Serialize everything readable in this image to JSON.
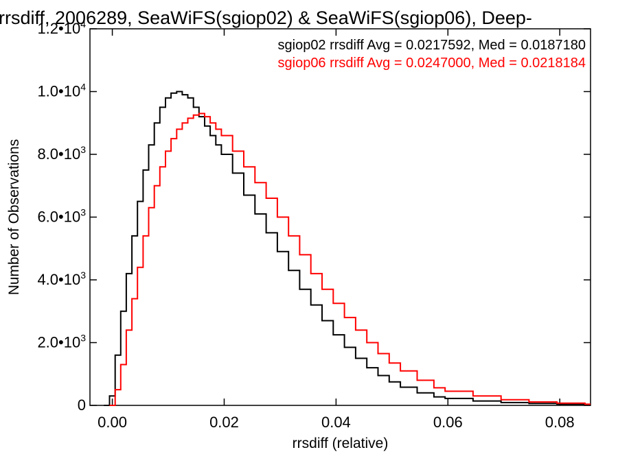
{
  "chart_data": {
    "type": "line",
    "title": "rrsdiff, 2006289, SeaWiFS(sgiop02) & SeaWiFS(sgiop06), Deep-",
    "xlabel": "rrsdiff (relative)",
    "ylabel": "Number of Observations",
    "xlim": [
      -0.004,
      0.0855
    ],
    "ylim": [
      0,
      12000
    ],
    "x_ticks": [
      {
        "value": 0.0,
        "label": "0.00"
      },
      {
        "value": 0.02,
        "label": "0.02"
      },
      {
        "value": 0.04,
        "label": "0.04"
      },
      {
        "value": 0.06,
        "label": "0.06"
      },
      {
        "value": 0.08,
        "label": "0.08"
      }
    ],
    "y_ticks": [
      {
        "value": 0,
        "mantissa": "0",
        "exp": ""
      },
      {
        "value": 2000,
        "mantissa": "2.0•10",
        "exp": "3"
      },
      {
        "value": 4000,
        "mantissa": "4.0•10",
        "exp": "3"
      },
      {
        "value": 6000,
        "mantissa": "6.0•10",
        "exp": "3"
      },
      {
        "value": 8000,
        "mantissa": "8.0•10",
        "exp": "3"
      },
      {
        "value": 10000,
        "mantissa": "1.0•10",
        "exp": "4"
      },
      {
        "value": 12000,
        "mantissa": "1.2•10",
        "exp": "4"
      }
    ],
    "grid": false,
    "legend_position": "top-right",
    "step": "histogram",
    "series": [
      {
        "name": "sgiop02",
        "legend_text": "sgiop02 rrsdiff Avg = 0.0217592, Med = 0.0187180",
        "color": "#000000",
        "x": [
          -0.001,
          0.0,
          0.001,
          0.002,
          0.003,
          0.004,
          0.005,
          0.006,
          0.007,
          0.008,
          0.009,
          0.01,
          0.011,
          0.012,
          0.013,
          0.014,
          0.015,
          0.016,
          0.017,
          0.018,
          0.019,
          0.02,
          0.022,
          0.024,
          0.026,
          0.028,
          0.03,
          0.032,
          0.034,
          0.036,
          0.038,
          0.04,
          0.042,
          0.044,
          0.046,
          0.048,
          0.05,
          0.052,
          0.055,
          0.058,
          0.06,
          0.065,
          0.07,
          0.075,
          0.08,
          0.085
        ],
        "y": [
          0,
          300,
          1600,
          3000,
          4200,
          5400,
          6500,
          7500,
          8300,
          9000,
          9500,
          9800,
          9950,
          10000,
          9900,
          9800,
          9500,
          9200,
          8900,
          8600,
          8300,
          8000,
          7400,
          6700,
          6100,
          5500,
          4900,
          4300,
          3700,
          3200,
          2700,
          2250,
          1850,
          1500,
          1200,
          950,
          750,
          580,
          400,
          270,
          220,
          140,
          90,
          60,
          40,
          30
        ]
      },
      {
        "name": "sgiop06",
        "legend_text": "sgiop06 rrsdiff Avg = 0.0247000, Med = 0.0218184",
        "color": "#ff0000",
        "x": [
          0.0,
          0.001,
          0.002,
          0.003,
          0.004,
          0.005,
          0.006,
          0.007,
          0.008,
          0.009,
          0.01,
          0.011,
          0.012,
          0.013,
          0.014,
          0.015,
          0.016,
          0.017,
          0.018,
          0.019,
          0.02,
          0.022,
          0.024,
          0.026,
          0.028,
          0.03,
          0.032,
          0.034,
          0.036,
          0.038,
          0.04,
          0.042,
          0.044,
          0.046,
          0.048,
          0.05,
          0.052,
          0.055,
          0.058,
          0.06,
          0.065,
          0.07,
          0.075,
          0.08,
          0.085
        ],
        "y": [
          0,
          500,
          1300,
          2400,
          3400,
          4400,
          5400,
          6300,
          7000,
          7600,
          8100,
          8500,
          8800,
          9000,
          9150,
          9250,
          9300,
          9200,
          9000,
          8800,
          8600,
          8100,
          7600,
          7100,
          6600,
          6000,
          5400,
          4800,
          4200,
          3700,
          3250,
          2800,
          2400,
          2000,
          1650,
          1350,
          1100,
          800,
          560,
          450,
          300,
          180,
          110,
          70,
          40
        ]
      }
    ]
  }
}
